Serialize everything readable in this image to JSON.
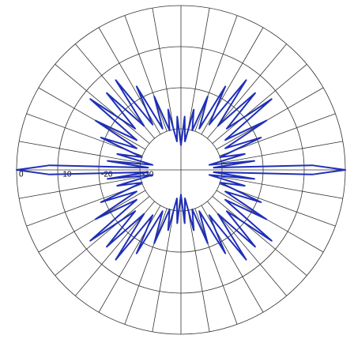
{
  "chart_data": {
    "type": "polar",
    "rlim": [
      -40,
      0
    ],
    "rticks": [
      0,
      -10,
      -20,
      -30
    ],
    "x": [
      0,
      2,
      4,
      7,
      10,
      14,
      18,
      22,
      26,
      30,
      34,
      38,
      42,
      46,
      50,
      54,
      58,
      62,
      66,
      70,
      74,
      78,
      82,
      86,
      90,
      94,
      98,
      102,
      106,
      110,
      114,
      118,
      122,
      126,
      130,
      134,
      138,
      142,
      146,
      150,
      154,
      158,
      162,
      166,
      170,
      173,
      176,
      178,
      180,
      182,
      184,
      187,
      190,
      194,
      198,
      202,
      206,
      210,
      214,
      218,
      222,
      226,
      230,
      234,
      238,
      242,
      246,
      250,
      254,
      258,
      262,
      266,
      270,
      274,
      278,
      282,
      286,
      290,
      294,
      298,
      302,
      306,
      310,
      314,
      318,
      322,
      326,
      330,
      334,
      338,
      342,
      346,
      350,
      353,
      356,
      358
    ],
    "values": [
      0,
      -8,
      -32,
      -22,
      -33,
      -24,
      -30,
      -19,
      -28,
      -16,
      -27,
      -12,
      -25,
      -14,
      -26,
      -13,
      -27,
      -17,
      -29,
      -21,
      -30,
      -25,
      -33,
      -27,
      -34,
      -27,
      -33,
      -25,
      -30,
      -21,
      -29,
      -17,
      -27,
      -13,
      -26,
      -14,
      -25,
      -12,
      -27,
      -16,
      -28,
      -19,
      -30,
      -24,
      -33,
      -22,
      -32,
      -8,
      0,
      -8,
      -32,
      -22,
      -33,
      -24,
      -30,
      -19,
      -28,
      -16,
      -27,
      -12,
      -25,
      -14,
      -26,
      -13,
      -27,
      -17,
      -29,
      -21,
      -30,
      -25,
      -33,
      -27,
      -34,
      -27,
      -33,
      -25,
      -30,
      -21,
      -29,
      -17,
      -27,
      -13,
      -26,
      -14,
      -25,
      -12,
      -27,
      -16,
      -28,
      -19,
      -30,
      -24,
      -33,
      -22,
      -32,
      -8
    ],
    "color": "#1f2fb8"
  }
}
